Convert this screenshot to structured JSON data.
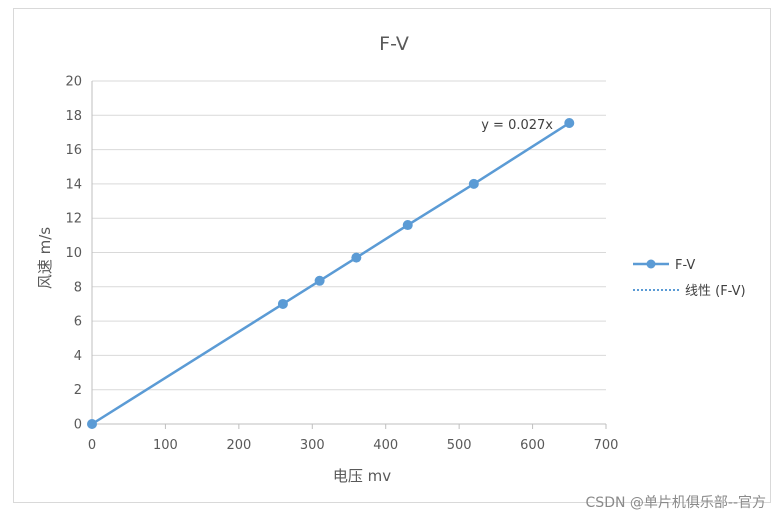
{
  "chart_data": {
    "type": "scatter",
    "title": "F-V",
    "xlabel": "电压  mv",
    "ylabel": "风速  m/s",
    "xlim": [
      0,
      700
    ],
    "ylim": [
      0,
      20
    ],
    "x_ticks": [
      "0",
      "100",
      "200",
      "300",
      "400",
      "500",
      "600",
      "700"
    ],
    "y_ticks": [
      "0",
      "2",
      "4",
      "6",
      "8",
      "10",
      "12",
      "14",
      "16",
      "18",
      "20"
    ],
    "grid": true,
    "legend_position": "right",
    "series": [
      {
        "name": "F-V",
        "color": "#5B9BD5",
        "marker": "circle",
        "x": [
          0,
          260,
          310,
          360,
          430,
          520,
          650
        ],
        "y": [
          0,
          7.0,
          8.35,
          9.7,
          11.6,
          14.0,
          17.55
        ]
      }
    ],
    "trendline": {
      "name": "线性 (F-V)",
      "type": "linear",
      "equation": "y = 0.027x",
      "color": "#5B9BD5",
      "style": "dotted"
    }
  },
  "watermark": "CSDN @单片机俱乐部--官方"
}
